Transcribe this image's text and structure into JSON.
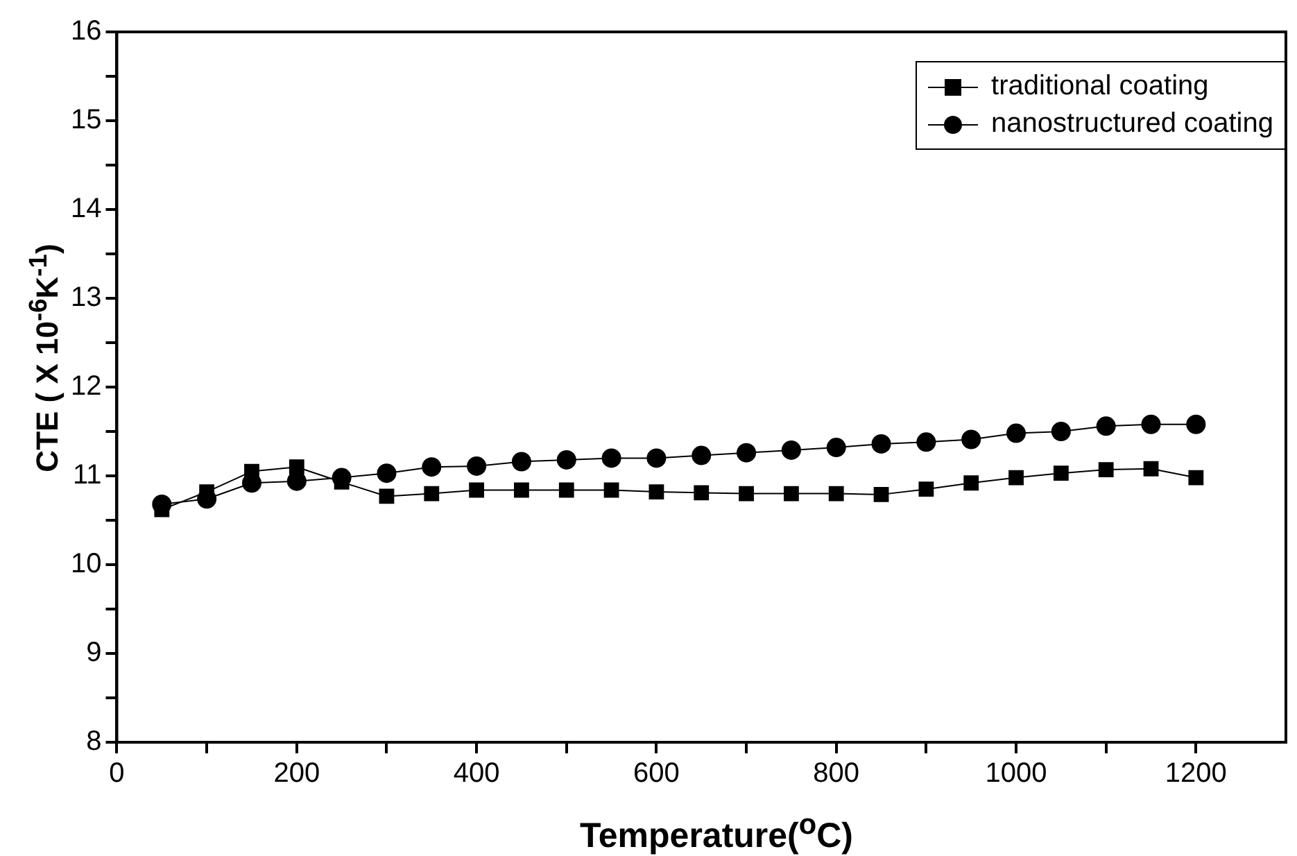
{
  "chart_data": {
    "type": "line",
    "xlabel": "Temperature($^{o}$C)",
    "ylabel": "CTE ( X 10$^{-6}$K$^{-1}$)",
    "x": [
      50,
      100,
      150,
      200,
      250,
      300,
      350,
      400,
      450,
      500,
      550,
      600,
      650,
      700,
      750,
      800,
      850,
      900,
      950,
      1000,
      1050,
      1100,
      1150,
      1200
    ],
    "series": [
      {
        "name": "traditional coating",
        "color": "#000000",
        "marker": "square",
        "values": [
          10.62,
          10.82,
          11.05,
          11.1,
          10.93,
          10.77,
          10.8,
          10.84,
          10.84,
          10.84,
          10.84,
          10.82,
          10.81,
          10.8,
          10.8,
          10.8,
          10.79,
          10.85,
          10.92,
          10.98,
          11.03,
          11.07,
          11.08,
          10.98
        ]
      },
      {
        "name": "nanostructured coating",
        "color": "#000000",
        "marker": "circle",
        "values": [
          10.68,
          10.74,
          10.92,
          10.94,
          10.98,
          11.03,
          11.1,
          11.11,
          11.16,
          11.18,
          11.2,
          11.2,
          11.23,
          11.26,
          11.29,
          11.32,
          11.36,
          11.38,
          11.41,
          11.48,
          11.5,
          11.56,
          11.58,
          11.58
        ]
      }
    ],
    "xlim": [
      0,
      1300
    ],
    "xticks": [
      0,
      {
        "value": 100,
        "label": null
      },
      200,
      {
        "value": 300,
        "label": null
      },
      400,
      {
        "value": 500,
        "label": null
      },
      600,
      {
        "value": 700,
        "label": null
      },
      800,
      {
        "value": 900,
        "label": null
      },
      1000,
      {
        "value": 1100,
        "label": null
      },
      1200
    ],
    "ylim": [
      8,
      16
    ],
    "yticks": [
      8,
      {
        "value": 8.5,
        "label": null
      },
      9,
      {
        "value": 9.5,
        "label": null
      },
      10,
      {
        "value": 10.5,
        "label": null
      },
      11,
      {
        "value": 11.5,
        "label": null
      },
      12,
      {
        "value": 12.5,
        "label": null
      },
      13,
      {
        "value": 13.5,
        "label": null
      },
      14,
      {
        "value": 14.5,
        "label": null
      },
      15,
      {
        "value": 15.5,
        "label": null
      },
      16
    ],
    "grid": false,
    "legend": "top right",
    "line_style": "solid"
  }
}
